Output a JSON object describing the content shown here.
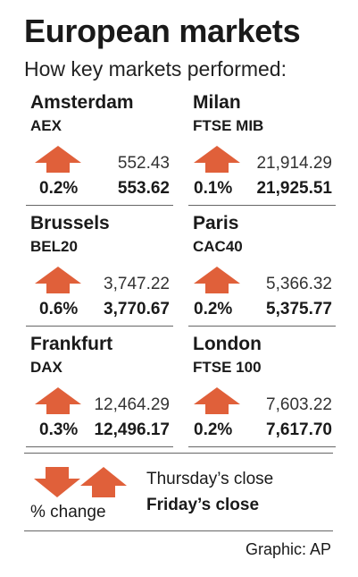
{
  "header": {
    "title": "European markets",
    "subtitle": "How key markets performed:"
  },
  "colors": {
    "arrow": "#e0603a",
    "rule": "#666666"
  },
  "markets": [
    {
      "city": "Amsterdam",
      "index": "AEX",
      "direction": "up",
      "thursday_close": "552.43",
      "change_pct": "0.2%",
      "friday_close": "553.62"
    },
    {
      "city": "Milan",
      "index": "FTSE MIB",
      "direction": "up",
      "thursday_close": "21,914.29",
      "change_pct": "0.1%",
      "friday_close": "21,925.51"
    },
    {
      "city": "Brussels",
      "index": "BEL20",
      "direction": "up",
      "thursday_close": "3,747.22",
      "change_pct": "0.6%",
      "friday_close": "3,770.67"
    },
    {
      "city": "Paris",
      "index": "CAC40",
      "direction": "up",
      "thursday_close": "5,366.32",
      "change_pct": "0.2%",
      "friday_close": "5,375.77"
    },
    {
      "city": "Frankfurt",
      "index": "DAX",
      "direction": "up",
      "thursday_close": "12,464.29",
      "change_pct": "0.3%",
      "friday_close": "12,496.17"
    },
    {
      "city": "London",
      "index": "FTSE 100",
      "direction": "up",
      "thursday_close": "7,603.22",
      "change_pct": "0.2%",
      "friday_close": "7,617.70"
    }
  ],
  "legend": {
    "change_label": "% change",
    "thursday_label": "Thursday’s close",
    "friday_label": "Friday’s close",
    "icons": [
      "arrow-down-icon",
      "arrow-up-icon"
    ]
  },
  "source": "Graphic: AP"
}
